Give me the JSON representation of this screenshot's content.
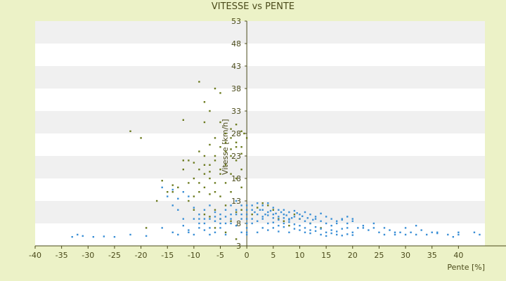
{
  "chart_data": {
    "type": "scatter",
    "title": "VITESSE vs PENTE",
    "xlabel": "Pente [%]",
    "ylabel": "Vitesse [km/h]",
    "xlim": [
      -40,
      45
    ],
    "ylim": [
      3,
      53
    ],
    "x_ticks": [
      -40,
      -35,
      -30,
      -25,
      -20,
      -15,
      -10,
      -5,
      0,
      5,
      10,
      15,
      20,
      25,
      30,
      35,
      40
    ],
    "y_ticks": [
      3,
      8,
      13,
      18,
      23,
      28,
      33,
      38,
      43,
      48,
      53
    ],
    "grid": "horizontal alternating bands",
    "colors": {
      "background": "#ecf2c7",
      "band_light": "#ffffff",
      "band_dark": "#f0f0f0",
      "series_a": "#6b7a1e",
      "series_b": "#3a8fd6",
      "axis": "#4a4a1a"
    },
    "series": [
      {
        "color": "#6b7a1e",
        "points": [
          [
            -22,
            28.5
          ],
          [
            -20,
            27
          ],
          [
            -12,
            31
          ],
          [
            -11,
            22
          ],
          [
            -9,
            39.5
          ],
          [
            -8,
            35
          ],
          [
            -7,
            33
          ],
          [
            -6,
            38
          ],
          [
            -5,
            37
          ],
          [
            -8,
            30.5
          ],
          [
            -5,
            30.5
          ],
          [
            -4,
            28
          ],
          [
            -3,
            27
          ],
          [
            -2,
            25
          ],
          [
            -1,
            25
          ],
          [
            0,
            27
          ],
          [
            -0.5,
            28
          ],
          [
            -1,
            28.5
          ],
          [
            -3,
            29
          ],
          [
            -2,
            30
          ],
          [
            -4,
            26
          ],
          [
            -6,
            27
          ],
          [
            -7,
            25.5
          ],
          [
            -9,
            24
          ],
          [
            -5,
            25
          ],
          [
            -6,
            23
          ],
          [
            -8,
            23
          ],
          [
            -7,
            21
          ],
          [
            -3,
            23
          ],
          [
            -4,
            21
          ],
          [
            -2,
            22
          ],
          [
            -1,
            20
          ],
          [
            -3,
            19
          ],
          [
            -5,
            19
          ],
          [
            -7,
            18
          ],
          [
            -9,
            17
          ],
          [
            -10,
            18
          ],
          [
            -12,
            20
          ],
          [
            -13,
            16
          ],
          [
            -14,
            15
          ],
          [
            -16,
            17.5
          ],
          [
            -17,
            13
          ],
          [
            -11,
            17
          ],
          [
            -9,
            15
          ],
          [
            -8,
            16
          ],
          [
            -6,
            17
          ],
          [
            -4,
            17
          ],
          [
            -2,
            18
          ],
          [
            -1,
            16
          ],
          [
            -3,
            15
          ],
          [
            -5,
            14
          ],
          [
            -7,
            14.5
          ],
          [
            -10,
            14
          ],
          [
            -11,
            13
          ],
          [
            -14,
            16.5
          ],
          [
            -15,
            15
          ],
          [
            -19,
            7
          ],
          [
            -6,
            11
          ],
          [
            -4,
            12
          ],
          [
            -2,
            10.5
          ],
          [
            -5,
            9
          ],
          [
            -3,
            8.5
          ],
          [
            -7,
            9.5
          ],
          [
            -1,
            11
          ],
          [
            1,
            10
          ],
          [
            2,
            11.5
          ],
          [
            3,
            12.5
          ],
          [
            4,
            12
          ],
          [
            5,
            11
          ],
          [
            6,
            9
          ],
          [
            7,
            8.5
          ],
          [
            8,
            7.5
          ],
          [
            9,
            10
          ],
          [
            10,
            9
          ],
          [
            12,
            8
          ],
          [
            14,
            7
          ],
          [
            -8,
            10
          ],
          [
            -6,
            7
          ],
          [
            -4,
            6
          ],
          [
            -2,
            4.5
          ],
          [
            -10,
            11
          ],
          [
            -9,
            20
          ],
          [
            -8,
            21
          ],
          [
            -6,
            22
          ],
          [
            -4,
            24
          ],
          [
            -2,
            26
          ],
          [
            -1,
            23.5
          ],
          [
            -3,
            24.5
          ],
          [
            -5,
            20
          ],
          [
            -7,
            19.5
          ],
          [
            -10,
            21.5
          ],
          [
            -12,
            22
          ],
          [
            -8,
            19
          ],
          [
            -6,
            15
          ]
        ]
      },
      {
        "color": "#3a8fd6",
        "points": [
          [
            -33,
            5
          ],
          [
            -32,
            5.5
          ],
          [
            -31,
            5.2
          ],
          [
            -29,
            5
          ],
          [
            -27,
            5.1
          ],
          [
            -25,
            5
          ],
          [
            -22,
            5.5
          ],
          [
            -19,
            5.2
          ],
          [
            -16,
            7
          ],
          [
            -14,
            6
          ],
          [
            -13,
            5.5
          ],
          [
            -12,
            7.5
          ],
          [
            -11,
            6
          ],
          [
            -10,
            5.5
          ],
          [
            -9,
            7
          ],
          [
            -8,
            6.5
          ],
          [
            -7,
            5.5
          ],
          [
            -6,
            6
          ],
          [
            -5,
            7
          ],
          [
            -4,
            5.5
          ],
          [
            -3,
            8
          ],
          [
            -2,
            7.5
          ],
          [
            -1,
            6
          ],
          [
            0,
            5.5
          ],
          [
            0,
            7
          ],
          [
            0,
            9
          ],
          [
            0,
            11
          ],
          [
            -1,
            12
          ],
          [
            -2,
            13
          ],
          [
            -3,
            12
          ],
          [
            -4,
            11
          ],
          [
            -5,
            10
          ],
          [
            -6,
            10.5
          ],
          [
            -7,
            12
          ],
          [
            -8,
            11
          ],
          [
            -9,
            10
          ],
          [
            -10,
            11.5
          ],
          [
            -11,
            14
          ],
          [
            -12,
            15
          ],
          [
            -13,
            13.5
          ],
          [
            -14,
            15.5
          ],
          [
            -15,
            14
          ],
          [
            -16,
            16
          ],
          [
            -9,
            9
          ],
          [
            -8,
            8
          ],
          [
            -7,
            9
          ],
          [
            -6,
            8.5
          ],
          [
            -5,
            9
          ],
          [
            -4,
            9.5
          ],
          [
            -3,
            10
          ],
          [
            -2,
            10
          ],
          [
            -1,
            9
          ],
          [
            1,
            9
          ],
          [
            2,
            10
          ],
          [
            3,
            11
          ],
          [
            4,
            10.5
          ],
          [
            5,
            10
          ],
          [
            6,
            9.5
          ],
          [
            7,
            10
          ],
          [
            8,
            9
          ],
          [
            9,
            9.5
          ],
          [
            10,
            9
          ],
          [
            11,
            8.5
          ],
          [
            12,
            8
          ],
          [
            13,
            9
          ],
          [
            14,
            8.5
          ],
          [
            15,
            8
          ],
          [
            16,
            7.5
          ],
          [
            17,
            8
          ],
          [
            18,
            9
          ],
          [
            19,
            8
          ],
          [
            20,
            9
          ],
          [
            21,
            7
          ],
          [
            22,
            7
          ],
          [
            23,
            6.5
          ],
          [
            24,
            7
          ],
          [
            25,
            6
          ],
          [
            26,
            7
          ],
          [
            27,
            6.5
          ],
          [
            28,
            5.5
          ],
          [
            29,
            6
          ],
          [
            30,
            7
          ],
          [
            31,
            6
          ],
          [
            32,
            7.5
          ],
          [
            33,
            6.5
          ],
          [
            35,
            6
          ],
          [
            36,
            6
          ],
          [
            40,
            6
          ],
          [
            40,
            5.5
          ],
          [
            43,
            6
          ],
          [
            44,
            5.5
          ],
          [
            1,
            12
          ],
          [
            2,
            12.5
          ],
          [
            3,
            12
          ],
          [
            4,
            12.5
          ],
          [
            5,
            11.5
          ],
          [
            6,
            11
          ],
          [
            7,
            11
          ],
          [
            8,
            10.5
          ],
          [
            9,
            10.8
          ],
          [
            10,
            10
          ],
          [
            11,
            10.5
          ],
          [
            12,
            10
          ],
          [
            13,
            9.5
          ],
          [
            14,
            10.2
          ],
          [
            15,
            9.5
          ],
          [
            16,
            9
          ],
          [
            17,
            8.5
          ],
          [
            18,
            8.8
          ],
          [
            19,
            9.5
          ],
          [
            20,
            8.5
          ],
          [
            1,
            8
          ],
          [
            2,
            8.5
          ],
          [
            3,
            9
          ],
          [
            4,
            8
          ],
          [
            5,
            8.2
          ],
          [
            6,
            7.5
          ],
          [
            7,
            8
          ],
          [
            8,
            8.3
          ],
          [
            9,
            7.8
          ],
          [
            10,
            7.5
          ],
          [
            11,
            7
          ],
          [
            12,
            6.5
          ],
          [
            13,
            7.2
          ],
          [
            14,
            6.8
          ],
          [
            15,
            6
          ],
          [
            16,
            6.5
          ],
          [
            17,
            6.2
          ],
          [
            18,
            6.8
          ],
          [
            19,
            7
          ],
          [
            20,
            6
          ],
          [
            1,
            11
          ],
          [
            1.5,
            10.5
          ],
          [
            2.5,
            11
          ],
          [
            3.5,
            10
          ],
          [
            4.5,
            10.8
          ],
          [
            5.5,
            10.2
          ],
          [
            6.5,
            10.5
          ],
          [
            7.5,
            9.8
          ],
          [
            8.5,
            9.2
          ],
          [
            9.5,
            10.3
          ],
          [
            10.5,
            9.6
          ],
          [
            11.5,
            9.2
          ],
          [
            12.5,
            8.8
          ],
          [
            3,
            9.5
          ],
          [
            4,
            9.8
          ],
          [
            5,
            9.2
          ],
          [
            6,
            8.8
          ],
          [
            7,
            9.2
          ],
          [
            8,
            8.8
          ],
          [
            -1,
            10
          ],
          [
            -2,
            11
          ],
          [
            -3,
            9
          ],
          [
            -4,
            8
          ],
          [
            -5,
            8
          ],
          [
            -6,
            9.5
          ],
          [
            -7,
            7
          ],
          [
            -8,
            9
          ],
          [
            -9,
            8
          ],
          [
            -10,
            9
          ],
          [
            0,
            10
          ],
          [
            0,
            8
          ],
          [
            0,
            6
          ],
          [
            0,
            12
          ],
          [
            -11,
            6.5
          ],
          [
            -12,
            9
          ],
          [
            -13,
            11
          ],
          [
            -14,
            12
          ],
          [
            22,
            7.5
          ],
          [
            24,
            8
          ],
          [
            26,
            5.5
          ],
          [
            28,
            6
          ],
          [
            30,
            5.5
          ],
          [
            32,
            5.5
          ],
          [
            34,
            5.5
          ],
          [
            36,
            5.8
          ],
          [
            38,
            5.5
          ],
          [
            39,
            5
          ],
          [
            2,
            6
          ],
          [
            3,
            7
          ],
          [
            4,
            6.5
          ],
          [
            5,
            7
          ],
          [
            6,
            6.2
          ],
          [
            7,
            7.2
          ],
          [
            8,
            6
          ],
          [
            9,
            6.8
          ],
          [
            10,
            6.5
          ],
          [
            11,
            6
          ],
          [
            12,
            5.8
          ],
          [
            13,
            6.3
          ],
          [
            14,
            5.5
          ],
          [
            15,
            5.2
          ],
          [
            16,
            5.8
          ],
          [
            17,
            5.5
          ],
          [
            18,
            5.3
          ],
          [
            19,
            5.6
          ],
          [
            20,
            5.4
          ]
        ]
      }
    ]
  }
}
